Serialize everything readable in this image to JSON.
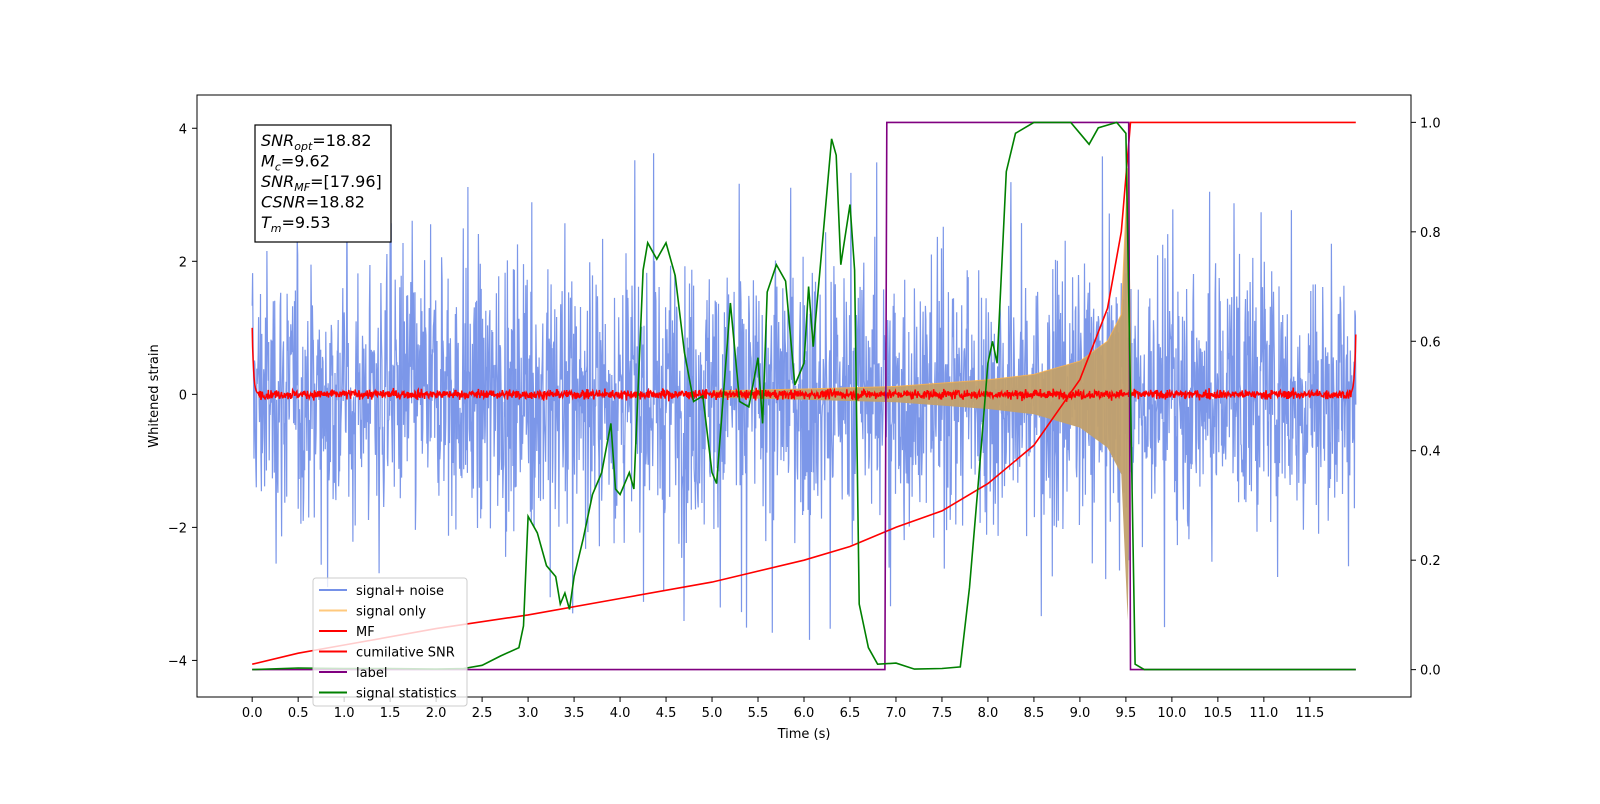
{
  "chart_data": {
    "type": "line",
    "xlabel": "Time (s)",
    "ylabel": "Whitened strain",
    "xlim": [
      -0.6,
      12.6
    ],
    "ylim": [
      -4.55,
      4.5
    ],
    "y2lim": [
      -0.05,
      1.05
    ],
    "x_ticks": [
      {
        "value": 0.0,
        "label": "0.0"
      },
      {
        "value": 0.5,
        "label": "0.5"
      },
      {
        "value": 1.0,
        "label": "1.0"
      },
      {
        "value": 1.5,
        "label": "1.5"
      },
      {
        "value": 2.0,
        "label": "2.0"
      },
      {
        "value": 2.5,
        "label": "2.5"
      },
      {
        "value": 3.0,
        "label": "3.0"
      },
      {
        "value": 3.5,
        "label": "3.5"
      },
      {
        "value": 4.0,
        "label": "4.0"
      },
      {
        "value": 4.5,
        "label": "4.5"
      },
      {
        "value": 5.0,
        "label": "5.0"
      },
      {
        "value": 5.5,
        "label": "5.5"
      },
      {
        "value": 6.0,
        "label": "6.0"
      },
      {
        "value": 6.5,
        "label": "6.5"
      },
      {
        "value": 7.0,
        "label": "7.0"
      },
      {
        "value": 7.5,
        "label": "7.5"
      },
      {
        "value": 8.0,
        "label": "8.0"
      },
      {
        "value": 8.5,
        "label": "8.5"
      },
      {
        "value": 9.0,
        "label": "9.0"
      },
      {
        "value": 9.5,
        "label": "9.5"
      },
      {
        "value": 10.0,
        "label": "10.0"
      },
      {
        "value": 10.5,
        "label": "10.5"
      },
      {
        "value": 11.0,
        "label": "11.0"
      },
      {
        "value": 11.5,
        "label": "11.5"
      }
    ],
    "y_ticks": [
      {
        "value": 4,
        "label": "4"
      },
      {
        "value": 2,
        "label": "2"
      },
      {
        "value": 0,
        "label": "0"
      },
      {
        "value": -2,
        "label": "−2"
      },
      {
        "value": -4,
        "label": "−4"
      }
    ],
    "y2_ticks": [
      {
        "value": 1.0,
        "label": "1.0"
      },
      {
        "value": 0.8,
        "label": "0.8"
      },
      {
        "value": 0.6,
        "label": "0.6"
      },
      {
        "value": 0.4,
        "label": "0.4"
      },
      {
        "value": 0.2,
        "label": "0.2"
      },
      {
        "value": 0.0,
        "label": "0.0"
      }
    ],
    "legend_position": "bottom-left",
    "series": [
      {
        "name": "signal+ noise",
        "color": "#7591e8",
        "axis": "left",
        "kind": "noise-band",
        "x_range": [
          0.0,
          12.0
        ],
        "typical_amplitude": 1.6,
        "peak_amplitude": 4.0
      },
      {
        "name": "signal only",
        "color": "#ffb347",
        "axis": "left",
        "kind": "chirp-envelope",
        "points": [
          [
            5.0,
            0.05
          ],
          [
            6.0,
            0.08
          ],
          [
            7.0,
            0.12
          ],
          [
            8.0,
            0.22
          ],
          [
            8.5,
            0.3
          ],
          [
            9.0,
            0.5
          ],
          [
            9.3,
            0.8
          ],
          [
            9.45,
            1.2
          ],
          [
            9.52,
            3.4
          ],
          [
            9.56,
            0.0
          ]
        ]
      },
      {
        "name": "MF",
        "color": "#ff0000",
        "axis": "left",
        "kind": "noise-band",
        "x_range": [
          0.0,
          12.0
        ],
        "typical_amplitude": 0.08,
        "start_value": 1.0,
        "end_value": 0.9
      },
      {
        "name": "cumilative SNR",
        "color": "#ff0000",
        "axis": "right",
        "points": [
          [
            0.0,
            0.01
          ],
          [
            0.5,
            0.03
          ],
          [
            1.0,
            0.045
          ],
          [
            2.0,
            0.075
          ],
          [
            3.0,
            0.1
          ],
          [
            4.0,
            0.13
          ],
          [
            5.0,
            0.16
          ],
          [
            6.0,
            0.2
          ],
          [
            6.5,
            0.225
          ],
          [
            7.0,
            0.26
          ],
          [
            7.5,
            0.29
          ],
          [
            8.0,
            0.34
          ],
          [
            8.5,
            0.41
          ],
          [
            9.0,
            0.53
          ],
          [
            9.3,
            0.66
          ],
          [
            9.45,
            0.8
          ],
          [
            9.5,
            0.9
          ],
          [
            9.55,
            1.0
          ],
          [
            12.0,
            1.0
          ]
        ]
      },
      {
        "name": "label",
        "color": "#800080",
        "axis": "right",
        "points": [
          [
            0.0,
            0.0
          ],
          [
            6.88,
            0.0
          ],
          [
            6.9,
            1.0
          ],
          [
            9.53,
            1.0
          ],
          [
            9.55,
            0.0
          ],
          [
            12.0,
            0.0
          ]
        ]
      },
      {
        "name": "signal statistics",
        "color": "#008000",
        "axis": "right",
        "points": [
          [
            0.0,
            0.0
          ],
          [
            0.5,
            0.003
          ],
          [
            1.0,
            0.002
          ],
          [
            1.5,
            0.002
          ],
          [
            2.0,
            0.001
          ],
          [
            2.3,
            0.002
          ],
          [
            2.5,
            0.008
          ],
          [
            2.7,
            0.025
          ],
          [
            2.9,
            0.04
          ],
          [
            2.95,
            0.08
          ],
          [
            3.0,
            0.28
          ],
          [
            3.1,
            0.25
          ],
          [
            3.2,
            0.19
          ],
          [
            3.3,
            0.17
          ],
          [
            3.35,
            0.12
          ],
          [
            3.4,
            0.14
          ],
          [
            3.45,
            0.11
          ],
          [
            3.5,
            0.17
          ],
          [
            3.6,
            0.24
          ],
          [
            3.7,
            0.32
          ],
          [
            3.8,
            0.36
          ],
          [
            3.9,
            0.45
          ],
          [
            3.95,
            0.33
          ],
          [
            4.0,
            0.32
          ],
          [
            4.1,
            0.36
          ],
          [
            4.15,
            0.33
          ],
          [
            4.25,
            0.73
          ],
          [
            4.3,
            0.78
          ],
          [
            4.4,
            0.75
          ],
          [
            4.5,
            0.78
          ],
          [
            4.6,
            0.72
          ],
          [
            4.7,
            0.58
          ],
          [
            4.8,
            0.49
          ],
          [
            4.9,
            0.5
          ],
          [
            5.0,
            0.36
          ],
          [
            5.05,
            0.34
          ],
          [
            5.2,
            0.67
          ],
          [
            5.3,
            0.49
          ],
          [
            5.4,
            0.48
          ],
          [
            5.5,
            0.57
          ],
          [
            5.55,
            0.45
          ],
          [
            5.6,
            0.69
          ],
          [
            5.7,
            0.74
          ],
          [
            5.8,
            0.71
          ],
          [
            5.9,
            0.52
          ],
          [
            6.0,
            0.56
          ],
          [
            6.05,
            0.7
          ],
          [
            6.1,
            0.59
          ],
          [
            6.2,
            0.78
          ],
          [
            6.3,
            0.97
          ],
          [
            6.35,
            0.94
          ],
          [
            6.4,
            0.74
          ],
          [
            6.5,
            0.85
          ],
          [
            6.55,
            0.73
          ],
          [
            6.6,
            0.12
          ],
          [
            6.7,
            0.04
          ],
          [
            6.8,
            0.01
          ],
          [
            7.0,
            0.012
          ],
          [
            7.2,
            0.001
          ],
          [
            7.5,
            0.002
          ],
          [
            7.7,
            0.005
          ],
          [
            7.8,
            0.15
          ],
          [
            7.9,
            0.35
          ],
          [
            8.0,
            0.56
          ],
          [
            8.05,
            0.6
          ],
          [
            8.1,
            0.56
          ],
          [
            8.2,
            0.91
          ],
          [
            8.3,
            0.98
          ],
          [
            8.5,
            1.0
          ],
          [
            8.9,
            1.0
          ],
          [
            9.0,
            0.98
          ],
          [
            9.1,
            0.96
          ],
          [
            9.2,
            0.99
          ],
          [
            9.4,
            1.0
          ],
          [
            9.5,
            0.98
          ],
          [
            9.55,
            0.5
          ],
          [
            9.6,
            0.01
          ],
          [
            9.7,
            0.0
          ],
          [
            12.0,
            0.0
          ]
        ]
      }
    ],
    "annotation": {
      "lines": [
        {
          "base": "SNR",
          "sub": "opt",
          "value": "=18.82"
        },
        {
          "base": "M",
          "sub": "c",
          "value": "=9.62"
        },
        {
          "base": "SNR",
          "sub": "MF",
          "value": "=[17.96]"
        },
        {
          "base": "CSNR",
          "sub": "",
          "value": "=18.82"
        },
        {
          "base": "T",
          "sub": "m",
          "value": "=9.53"
        }
      ]
    }
  }
}
